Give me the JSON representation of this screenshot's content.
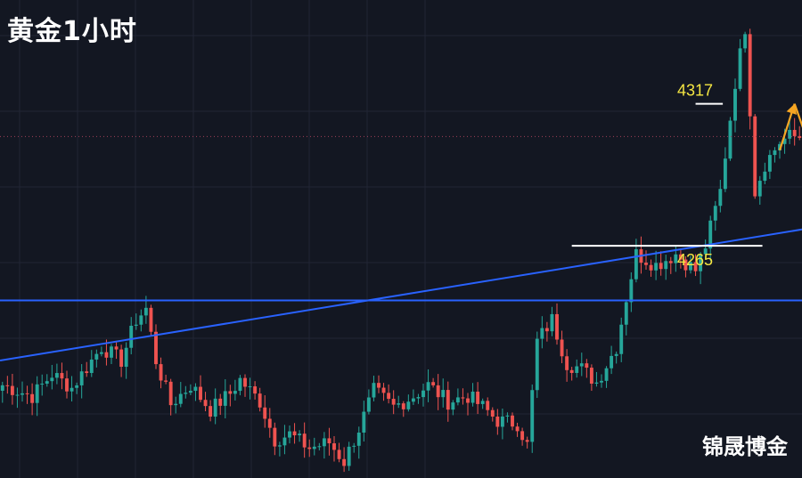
{
  "title": "黄金1小时",
  "brand": "锦晟博金",
  "colors": {
    "background": "#131722",
    "grid": "#222634",
    "bullish": "#26a69a",
    "bearish": "#ef5350",
    "trendline": "#2962ff",
    "level_line": "#ffffff",
    "level_text": "#f5e642",
    "arrow": "#f6a623",
    "price_marker": "#a0405a"
  },
  "chart_data": {
    "type": "candlestick",
    "title": "黄金1小时",
    "xlabel": "",
    "ylabel": "",
    "grid": true,
    "ylim": [
      4180,
      4355
    ],
    "current_price": 4305,
    "horizontal_levels": [
      {
        "value": 4317,
        "label": "4317"
      },
      {
        "value": 4265,
        "label": "4265"
      }
    ],
    "forecast_path": [
      {
        "bar": 157,
        "price": 4300
      },
      {
        "bar": 160,
        "price": 4317
      },
      {
        "bar": 166,
        "price": 4286
      }
    ],
    "support_line_value": 4245,
    "anchors": [
      [
        0,
        4214
      ],
      [
        6,
        4210
      ],
      [
        10,
        4218
      ],
      [
        14,
        4213
      ],
      [
        20,
        4228
      ],
      [
        24,
        4223
      ],
      [
        27,
        4238
      ],
      [
        29,
        4242
      ],
      [
        31,
        4223
      ],
      [
        34,
        4207
      ],
      [
        38,
        4214
      ],
      [
        42,
        4205
      ],
      [
        46,
        4211
      ],
      [
        48,
        4216
      ],
      [
        52,
        4208
      ],
      [
        55,
        4194
      ],
      [
        58,
        4196
      ],
      [
        62,
        4191
      ],
      [
        66,
        4193
      ],
      [
        69,
        4186
      ],
      [
        72,
        4198
      ],
      [
        75,
        4212
      ],
      [
        79,
        4206
      ],
      [
        83,
        4210
      ],
      [
        86,
        4214
      ],
      [
        90,
        4208
      ],
      [
        94,
        4210
      ],
      [
        97,
        4206
      ],
      [
        100,
        4201
      ],
      [
        104,
        4200
      ],
      [
        106,
        4192
      ],
      [
        108,
        4230
      ],
      [
        111,
        4238
      ],
      [
        114,
        4222
      ],
      [
        117,
        4220
      ],
      [
        120,
        4215
      ],
      [
        124,
        4228
      ],
      [
        126,
        4246
      ],
      [
        128,
        4262
      ],
      [
        132,
        4258
      ],
      [
        136,
        4262
      ],
      [
        140,
        4256
      ],
      [
        142,
        4265
      ],
      [
        145,
        4285
      ],
      [
        148,
        4325
      ],
      [
        150,
        4345
      ],
      [
        152,
        4285
      ],
      [
        154,
        4295
      ],
      [
        157,
        4303
      ],
      [
        159,
        4305
      ]
    ]
  }
}
